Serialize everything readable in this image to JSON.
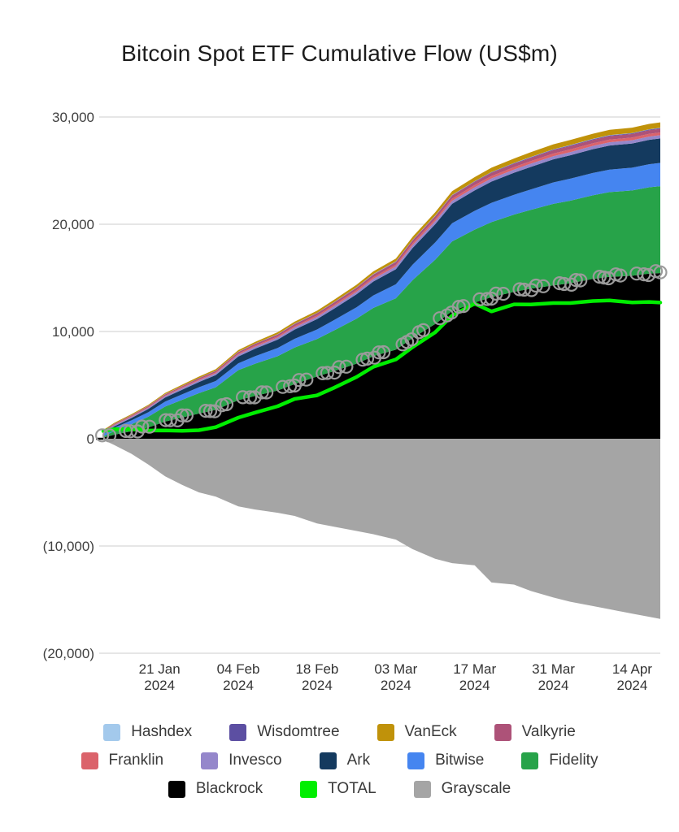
{
  "chart_data": {
    "type": "area",
    "stacked": true,
    "title": "Bitcoin Spot ETF Cumulative Flow (US$m)",
    "grid": true,
    "y_axis": {
      "range": [
        -20000,
        30000
      ],
      "ticks": [
        {
          "value": 30000,
          "label": "30,000"
        },
        {
          "value": 20000,
          "label": "20,000"
        },
        {
          "value": 10000,
          "label": "10,000"
        },
        {
          "value": 0,
          "label": "0"
        },
        {
          "value": -10000,
          "label": "(10,000)"
        },
        {
          "value": -20000,
          "label": "(20,000)"
        }
      ]
    },
    "x_axis": {
      "ticks": [
        {
          "day": 10,
          "label": "21 Jan",
          "year": "2024"
        },
        {
          "day": 24,
          "label": "04 Feb",
          "year": "2024"
        },
        {
          "day": 38,
          "label": "18 Feb",
          "year": "2024"
        },
        {
          "day": 52,
          "label": "03 Mar",
          "year": "2024"
        },
        {
          "day": 66,
          "label": "17 Mar",
          "year": "2024"
        },
        {
          "day": 80,
          "label": "31 Mar",
          "year": "2024"
        },
        {
          "day": 94,
          "label": "14 Apr",
          "year": "2024"
        }
      ]
    },
    "x_days": [
      0,
      2,
      5,
      8,
      11,
      14,
      17,
      20,
      24,
      27,
      31,
      34,
      38,
      41,
      45,
      48,
      52,
      55,
      59,
      62,
      66,
      69,
      73,
      76,
      80,
      83,
      87,
      90,
      94,
      97,
      99
    ],
    "colors": {
      "Hashdex": "#a3c9ec",
      "Wisdomtree": "#5c4fa2",
      "VanEck": "#c0920a",
      "Valkyrie": "#ad5278",
      "Franklin": "#db636b",
      "Invesco": "#9587cb",
      "Ark": "#143a5f",
      "Bitwise": "#4585f0",
      "Fidelity": "#27a349",
      "Blackrock": "#000000",
      "TOTAL": "#00ee00",
      "Grayscale": "#a5a5a5"
    },
    "series": [
      {
        "name": "Blackrock",
        "values": [
          112,
          380,
          700,
          1050,
          1600,
          1980,
          2350,
          2700,
          3600,
          4000,
          4500,
          5100,
          5800,
          6300,
          7000,
          7700,
          8300,
          9400,
          10700,
          11900,
          12700,
          13200,
          13700,
          14000,
          14300,
          14500,
          14900,
          15100,
          15200,
          15400,
          15450
        ]
      },
      {
        "name": "Fidelity",
        "values": [
          100,
          350,
          650,
          1000,
          1400,
          1650,
          1900,
          2100,
          2800,
          3000,
          3200,
          3400,
          3500,
          3800,
          4200,
          4500,
          4800,
          5400,
          6000,
          6500,
          6800,
          7000,
          7200,
          7350,
          7600,
          7700,
          7800,
          7900,
          7950,
          8050,
          8100
        ]
      },
      {
        "name": "Bitwise",
        "values": [
          240,
          300,
          360,
          420,
          470,
          510,
          550,
          590,
          640,
          700,
          760,
          820,
          890,
          960,
          1060,
          1160,
          1300,
          1450,
          1600,
          1700,
          1750,
          1800,
          1850,
          1900,
          2000,
          2050,
          2080,
          2100,
          2120,
          2150,
          2170
        ]
      },
      {
        "name": "Ark",
        "values": [
          65,
          140,
          220,
          300,
          370,
          430,
          490,
          550,
          630,
          700,
          780,
          860,
          960,
          1060,
          1200,
          1300,
          1400,
          1550,
          1700,
          1800,
          1900,
          1980,
          2050,
          2100,
          2150,
          2180,
          2220,
          2240,
          2260,
          2270,
          2280
        ]
      },
      {
        "name": "Invesco",
        "values": [
          95,
          100,
          110,
          120,
          130,
          140,
          150,
          160,
          170,
          180,
          190,
          200,
          215,
          225,
          240,
          250,
          260,
          270,
          280,
          285,
          290,
          293,
          296,
          298,
          300,
          301,
          302,
          303,
          304,
          305,
          306
        ]
      },
      {
        "name": "Franklin",
        "values": [
          50,
          55,
          60,
          65,
          70,
          75,
          80,
          85,
          95,
          100,
          110,
          115,
          125,
          130,
          140,
          150,
          160,
          170,
          185,
          195,
          210,
          220,
          230,
          235,
          240,
          243,
          246,
          248,
          250,
          252,
          253
        ]
      },
      {
        "name": "Valkyrie",
        "values": [
          60,
          70,
          80,
          90,
          100,
          110,
          120,
          130,
          145,
          160,
          175,
          190,
          205,
          215,
          230,
          240,
          250,
          262,
          275,
          285,
          295,
          302,
          308,
          313,
          318,
          322,
          326,
          330,
          334,
          337,
          340
        ]
      },
      {
        "name": "Wisdomtree",
        "values": [
          10,
          11,
          12,
          13,
          14,
          15,
          16,
          17,
          18,
          20,
          22,
          24,
          26,
          28,
          30,
          33,
          36,
          39,
          42,
          45,
          48,
          51,
          54,
          57,
          60,
          62,
          64,
          66,
          68,
          69,
          70
        ]
      },
      {
        "name": "Hashdex",
        "values": [
          5,
          6,
          7,
          8,
          9,
          10,
          11,
          12,
          13,
          14,
          15,
          16,
          17,
          18,
          19,
          20,
          21,
          21,
          22,
          22,
          23,
          23,
          24,
          24,
          24,
          25,
          25,
          25,
          25,
          25,
          25
        ]
      },
      {
        "name": "VanEck",
        "values": [
          72,
          80,
          90,
          100,
          110,
          120,
          130,
          140,
          155,
          165,
          180,
          190,
          205,
          215,
          235,
          250,
          270,
          290,
          320,
          350,
          380,
          400,
          420,
          440,
          460,
          470,
          480,
          490,
          495,
          500,
          505
        ]
      }
    ],
    "negative_series": {
      "name": "Grayscale",
      "values": [
        -95,
        -600,
        -1400,
        -2400,
        -3500,
        -4300,
        -5000,
        -5400,
        -6300,
        -6600,
        -6900,
        -7200,
        -7900,
        -8200,
        -8600,
        -8900,
        -9400,
        -10300,
        -11200,
        -11600,
        -11800,
        -13400,
        -13600,
        -14200,
        -14800,
        -15200,
        -15600,
        -15900,
        -16300,
        -16600,
        -16800
      ]
    },
    "total_line": {
      "name": "TOTAL"
    },
    "markers": {
      "follows": "Blackrock",
      "shape": "open-circle"
    },
    "legend_rows": [
      [
        "Hashdex",
        "Wisdomtree",
        "VanEck",
        "Valkyrie"
      ],
      [
        "Franklin",
        "Invesco",
        "Ark",
        "Bitwise",
        "Fidelity"
      ],
      [
        "Blackrock",
        "TOTAL",
        "Grayscale"
      ]
    ]
  }
}
